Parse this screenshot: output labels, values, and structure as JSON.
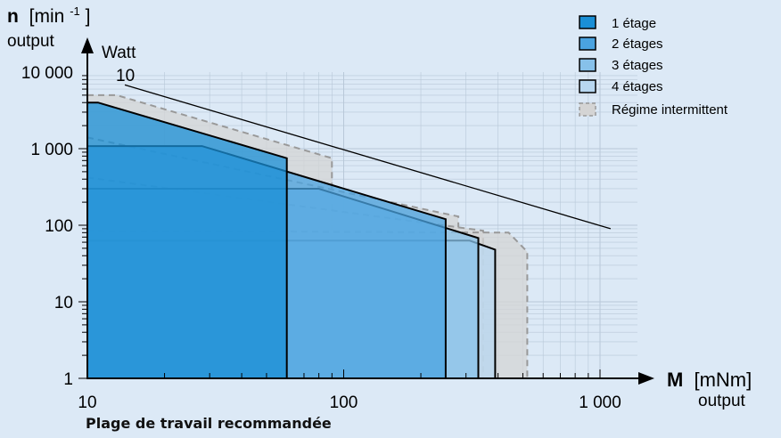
{
  "chart_data": {
    "type": "area",
    "x_scale": "log",
    "y_scale": "log",
    "xlim": [
      10,
      1400
    ],
    "ylim": [
      1,
      10000
    ],
    "grid": true,
    "legend_placement": "top-right",
    "x_axis": {
      "symbol": "M",
      "unit": "[mNm]",
      "sublabel": "output",
      "tick_values": [
        10,
        100,
        1000
      ],
      "tick_labels": [
        "10",
        "100",
        "1 000"
      ]
    },
    "y_axis": {
      "symbol": "n",
      "unit_base": "[min",
      "unit_sup": "-1",
      "unit_close": "]",
      "sublabel": "output",
      "tick_values": [
        1,
        10,
        100,
        1000,
        10000
      ],
      "tick_labels": [
        "1",
        "10",
        "100",
        "1 000",
        "10 000"
      ]
    },
    "power_line": {
      "label_top": "Watt",
      "label_value": "10",
      "color": "#000000",
      "points": [
        [
          14,
          6800
        ],
        [
          1100,
          90
        ]
      ]
    },
    "series": [
      {
        "name": "1 étage",
        "color": "#1a8fd6",
        "polygon": [
          [
            10,
            4000
          ],
          [
            11,
            4000
          ],
          [
            60,
            750
          ],
          [
            60,
            1
          ]
        ]
      },
      {
        "name": "2 étages",
        "color": "#4aa3e0",
        "polygon": [
          [
            10,
            1080
          ],
          [
            28,
            1080
          ],
          [
            250,
            120
          ],
          [
            250,
            1
          ]
        ]
      },
      {
        "name": "3 étages",
        "color": "#87c1ea",
        "polygon": [
          [
            10,
            300
          ],
          [
            80,
            300
          ],
          [
            335,
            68
          ],
          [
            335,
            1
          ]
        ]
      },
      {
        "name": "4 étages",
        "color": "#b8d7f0",
        "polygon": [
          [
            10,
            63
          ],
          [
            310,
            63
          ],
          [
            390,
            48
          ],
          [
            390,
            1
          ]
        ]
      }
    ],
    "intermittent": {
      "name": "Régime intermittent",
      "color": "#d4d4d4",
      "dash_color": "#999999",
      "regions": [
        [
          [
            10,
            5000
          ],
          [
            13,
            5000
          ],
          [
            90,
            750
          ],
          [
            90,
            1
          ],
          [
            10,
            1
          ]
        ],
        [
          [
            10,
            1400
          ],
          [
            280,
            130
          ],
          [
            280,
            1
          ],
          [
            10,
            1
          ]
        ],
        [
          [
            10,
            420
          ],
          [
            350,
            85
          ],
          [
            350,
            1
          ],
          [
            10,
            1
          ]
        ],
        [
          [
            10,
            85
          ],
          [
            440,
            80
          ],
          [
            520,
            45
          ],
          [
            520,
            1
          ],
          [
            10,
            1
          ]
        ]
      ]
    },
    "footer": "Plage de travail recommandée"
  }
}
